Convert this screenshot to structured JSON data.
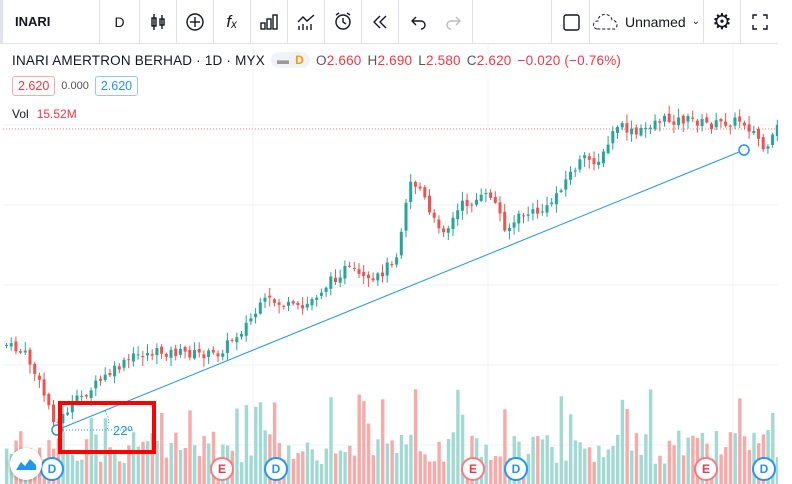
{
  "toolbar": {
    "symbol": "INARI",
    "interval": "D",
    "icons": [
      "candles-icon",
      "compare-plus-icon",
      "indicators-fx-icon",
      "financials-bars-icon",
      "templates-icon",
      "alert-icon",
      "replay-icon",
      "undo-icon",
      "redo-icon"
    ],
    "layout_name": "Unnamed",
    "right_icons": [
      "layout-square-icon",
      "cloud-icon",
      "settings-gear-icon",
      "fullscreen-icon"
    ]
  },
  "legend": {
    "title": "INARI AMERTRON BERHAD · 1D · MYX",
    "badge": "D",
    "o_label": "O",
    "o": "2.660",
    "h_label": "H",
    "h": "2.690",
    "l_label": "L",
    "l": "2.580",
    "c_label": "C",
    "c": "2.620",
    "change": "−0.020 (−0.76%)"
  },
  "prices": {
    "bid": "2.620",
    "spread": "0.000",
    "ask": "2.620"
  },
  "volume": {
    "label": "Vol",
    "value": "15.52M"
  },
  "drawing": {
    "angle": "22º"
  },
  "markers": [
    {
      "t": "D"
    },
    {
      "t": "E"
    },
    {
      "t": "D"
    },
    {
      "t": "E"
    },
    {
      "t": "D"
    },
    {
      "t": "E"
    },
    {
      "t": "D"
    }
  ],
  "colors": {
    "up": "#26a69a",
    "down": "#ef5350",
    "line": "#2196f3",
    "highlight": "#ff0000"
  }
}
